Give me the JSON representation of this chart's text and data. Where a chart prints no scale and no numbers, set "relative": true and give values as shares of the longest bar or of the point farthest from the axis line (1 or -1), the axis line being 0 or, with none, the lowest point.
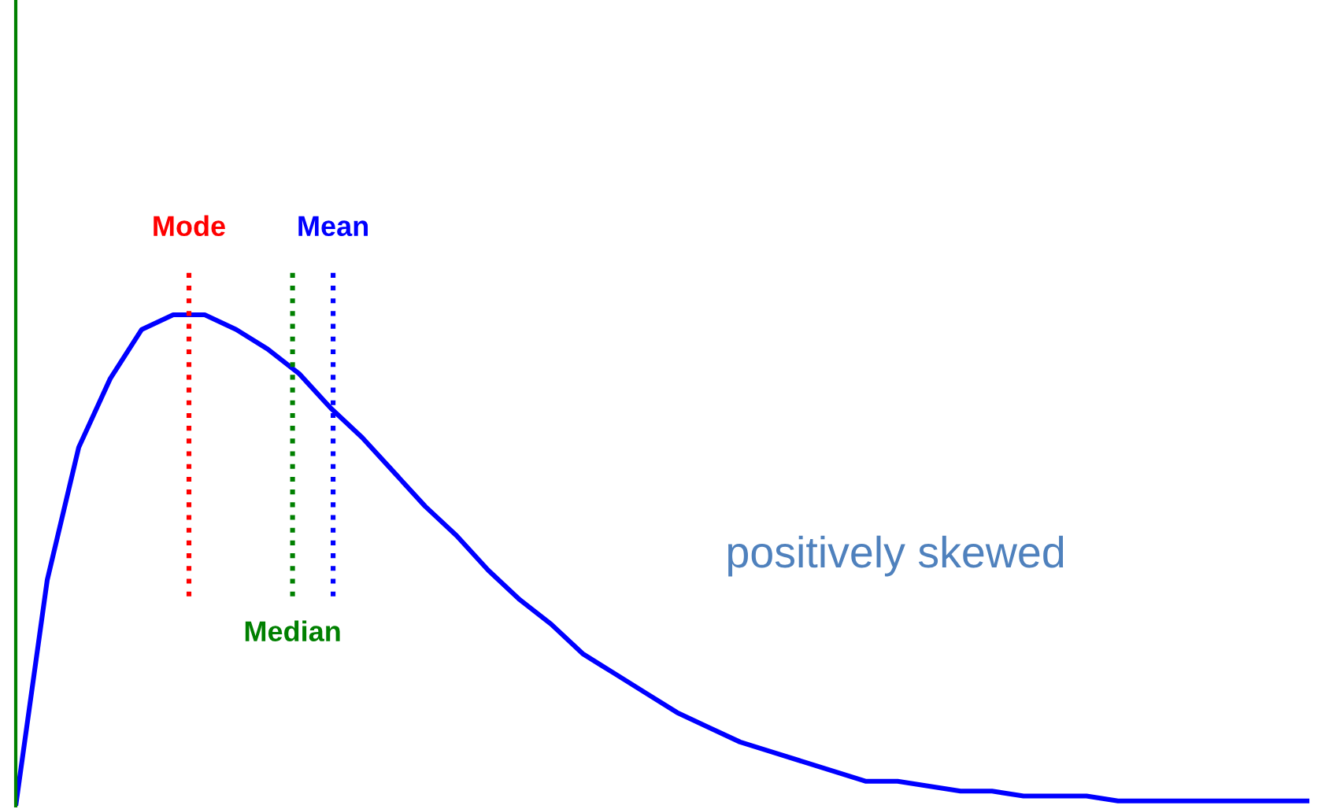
{
  "chart_data": {
    "type": "line",
    "relative": true,
    "tick_labels": false,
    "legend": false,
    "marker": "none",
    "line_style": "solid",
    "categories": [
      null,
      null,
      null,
      null,
      null,
      null,
      null,
      null,
      null,
      null,
      null,
      null,
      null,
      null,
      null,
      null,
      null,
      null,
      null,
      null,
      null,
      null,
      null,
      null,
      null,
      null,
      null,
      null,
      null,
      null,
      null,
      null,
      null,
      null,
      null,
      null,
      null,
      null,
      null,
      null,
      null,
      null
    ],
    "series": [
      {
        "color": "#0000ff",
        "values": [
          0,
          0.46,
          0.73,
          0.87,
          0.97,
          1.0,
          1.0,
          0.97,
          0.93,
          0.88,
          0.81,
          0.75,
          0.68,
          0.61,
          0.55,
          0.48,
          0.42,
          0.37,
          0.31,
          0.27,
          0.23,
          0.19,
          0.16,
          0.13,
          0.11,
          0.09,
          0.07,
          0.05,
          0.05,
          0.04,
          0.03,
          0.03,
          0.02,
          0.02,
          0.02,
          0.01,
          0.01,
          0.01,
          0.01,
          0.01,
          0.01,
          0.01
        ]
      }
    ],
    "annotations": [
      "Mode",
      "Median",
      "Mean",
      "positively skewed"
    ]
  }
}
